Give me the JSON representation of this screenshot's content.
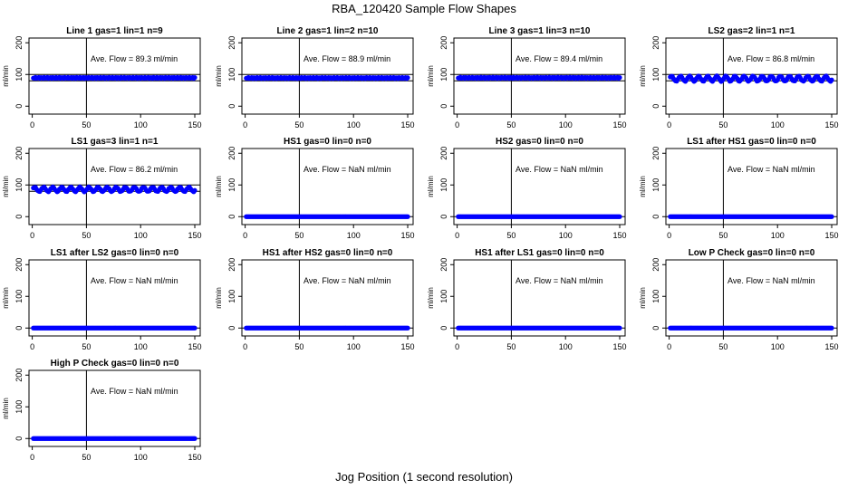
{
  "figure": {
    "title": "RBA_120420  Sample Flow Shapes",
    "xlabel": "Jog Position (1 second resolution)"
  },
  "chart_data": [
    {
      "type": "scatter",
      "title": "Line 1 gas=1 lin=1 n=9",
      "ylabel": "ml/min",
      "annotation": "Ave. Flow =  89.3  ml/min",
      "xlim": [
        -3,
        155
      ],
      "ylim": [
        -25,
        215
      ],
      "xticks": [
        "0",
        "50",
        "100",
        "150"
      ],
      "yticks": [
        "0",
        "100",
        "200"
      ],
      "hlines": [
        80,
        100
      ],
      "vline": 50,
      "series": [
        {
          "name": "flow",
          "x_range": [
            1,
            150
          ],
          "value": 89.3,
          "noise": 2,
          "color": "#0000ff"
        }
      ]
    },
    {
      "type": "scatter",
      "title": "Line 2 gas=1 lin=2 n=10",
      "ylabel": "ml/min",
      "annotation": "Ave. Flow =  88.9  ml/min",
      "xlim": [
        -3,
        155
      ],
      "ylim": [
        -25,
        215
      ],
      "xticks": [
        "0",
        "50",
        "100",
        "150"
      ],
      "yticks": [
        "0",
        "100",
        "200"
      ],
      "hlines": [
        80,
        100
      ],
      "vline": 50,
      "series": [
        {
          "name": "flow",
          "x_range": [
            1,
            150
          ],
          "value": 88.9,
          "noise": 2,
          "color": "#0000ff"
        }
      ]
    },
    {
      "type": "scatter",
      "title": "Line 3 gas=1 lin=3 n=10",
      "ylabel": "ml/min",
      "annotation": "Ave. Flow =  89.4  ml/min",
      "xlim": [
        -3,
        155
      ],
      "ylim": [
        -25,
        215
      ],
      "xticks": [
        "0",
        "50",
        "100",
        "150"
      ],
      "yticks": [
        "0",
        "100",
        "200"
      ],
      "hlines": [
        80,
        100
      ],
      "vline": 50,
      "series": [
        {
          "name": "flow",
          "x_range": [
            1,
            150
          ],
          "value": 89.4,
          "noise": 2,
          "color": "#0000ff"
        }
      ]
    },
    {
      "type": "scatter",
      "title": "LS2 gas=2 lin=1 n=1",
      "ylabel": "ml/min",
      "annotation": "Ave. Flow =  86.8  ml/min",
      "xlim": [
        -3,
        155
      ],
      "ylim": [
        -25,
        215
      ],
      "xticks": [
        "0",
        "50",
        "100",
        "150"
      ],
      "yticks": [
        "0",
        "100",
        "200"
      ],
      "hlines": [
        80,
        100
      ],
      "vline": 50,
      "series": [
        {
          "name": "flow",
          "x_range": [
            1,
            150
          ],
          "value": 86.8,
          "wave": 8,
          "noise": 1,
          "color": "#0000ff"
        }
      ]
    },
    {
      "type": "scatter",
      "title": "LS1 gas=3 lin=1 n=1",
      "ylabel": "ml/min",
      "annotation": "Ave. Flow =  86.2  ml/min",
      "xlim": [
        -3,
        155
      ],
      "ylim": [
        -25,
        215
      ],
      "xticks": [
        "0",
        "50",
        "100",
        "150"
      ],
      "yticks": [
        "0",
        "100",
        "200"
      ],
      "hlines": [
        80,
        100
      ],
      "vline": 50,
      "series": [
        {
          "name": "flow",
          "x_range": [
            1,
            150
          ],
          "value": 86.2,
          "wave": 7,
          "noise": 1,
          "color": "#0000ff"
        }
      ]
    },
    {
      "type": "scatter",
      "title": "HS1 gas=0 lin=0 n=0",
      "ylabel": "ml/min",
      "annotation": "Ave. Flow =  NaN  ml/min",
      "xlim": [
        -3,
        155
      ],
      "ylim": [
        -25,
        215
      ],
      "xticks": [
        "0",
        "50",
        "100",
        "150"
      ],
      "yticks": [
        "0",
        "100",
        "200"
      ],
      "hlines": [
        0
      ],
      "vline": 50,
      "series": [
        {
          "name": "flow",
          "x_range": [
            1,
            150
          ],
          "value": 0,
          "noise": 0,
          "color": "#0000ff"
        }
      ]
    },
    {
      "type": "scatter",
      "title": "HS2 gas=0 lin=0 n=0",
      "ylabel": "ml/min",
      "annotation": "Ave. Flow =  NaN  ml/min",
      "xlim": [
        -3,
        155
      ],
      "ylim": [
        -25,
        215
      ],
      "xticks": [
        "0",
        "50",
        "100",
        "150"
      ],
      "yticks": [
        "0",
        "100",
        "200"
      ],
      "hlines": [
        0
      ],
      "vline": 50,
      "series": [
        {
          "name": "flow",
          "x_range": [
            1,
            150
          ],
          "value": 0,
          "noise": 0,
          "color": "#0000ff"
        }
      ]
    },
    {
      "type": "scatter",
      "title": "LS1 after HS1 gas=0 lin=0 n=0",
      "ylabel": "ml/min",
      "annotation": "Ave. Flow =  NaN  ml/min",
      "xlim": [
        -3,
        155
      ],
      "ylim": [
        -25,
        215
      ],
      "xticks": [
        "0",
        "50",
        "100",
        "150"
      ],
      "yticks": [
        "0",
        "100",
        "200"
      ],
      "hlines": [
        0
      ],
      "vline": 50,
      "series": [
        {
          "name": "flow",
          "x_range": [
            1,
            150
          ],
          "value": 0,
          "noise": 0,
          "color": "#0000ff"
        }
      ]
    },
    {
      "type": "scatter",
      "title": "LS1 after LS2 gas=0 lin=0 n=0",
      "ylabel": "ml/min",
      "annotation": "Ave. Flow =  NaN  ml/min",
      "xlim": [
        -3,
        155
      ],
      "ylim": [
        -25,
        215
      ],
      "xticks": [
        "0",
        "50",
        "100",
        "150"
      ],
      "yticks": [
        "0",
        "100",
        "200"
      ],
      "hlines": [
        0
      ],
      "vline": 50,
      "series": [
        {
          "name": "flow",
          "x_range": [
            1,
            150
          ],
          "value": 0,
          "noise": 0,
          "color": "#0000ff"
        }
      ]
    },
    {
      "type": "scatter",
      "title": "HS1 after HS2 gas=0 lin=0 n=0",
      "ylabel": "ml/min",
      "annotation": "Ave. Flow =  NaN  ml/min",
      "xlim": [
        -3,
        155
      ],
      "ylim": [
        -25,
        215
      ],
      "xticks": [
        "0",
        "50",
        "100",
        "150"
      ],
      "yticks": [
        "0",
        "100",
        "200"
      ],
      "hlines": [
        0
      ],
      "vline": 50,
      "series": [
        {
          "name": "flow",
          "x_range": [
            1,
            150
          ],
          "value": 0,
          "noise": 0,
          "color": "#0000ff"
        }
      ]
    },
    {
      "type": "scatter",
      "title": "HS1 after LS1 gas=0 lin=0 n=0",
      "ylabel": "ml/min",
      "annotation": "Ave. Flow =  NaN  ml/min",
      "xlim": [
        -3,
        155
      ],
      "ylim": [
        -25,
        215
      ],
      "xticks": [
        "0",
        "50",
        "100",
        "150"
      ],
      "yticks": [
        "0",
        "100",
        "200"
      ],
      "hlines": [
        0
      ],
      "vline": 50,
      "series": [
        {
          "name": "flow",
          "x_range": [
            1,
            150
          ],
          "value": 0,
          "noise": 0,
          "color": "#0000ff"
        }
      ]
    },
    {
      "type": "scatter",
      "title": "Low P Check gas=0 lin=0 n=0",
      "ylabel": "ml/min",
      "annotation": "Ave. Flow =  NaN  ml/min",
      "xlim": [
        -3,
        155
      ],
      "ylim": [
        -25,
        215
      ],
      "xticks": [
        "0",
        "50",
        "100",
        "150"
      ],
      "yticks": [
        "0",
        "100",
        "200"
      ],
      "hlines": [
        0
      ],
      "vline": 50,
      "series": [
        {
          "name": "flow",
          "x_range": [
            1,
            150
          ],
          "value": 0,
          "noise": 0,
          "color": "#0000ff"
        }
      ]
    },
    {
      "type": "scatter",
      "title": "High P Check gas=0 lin=0 n=0",
      "ylabel": "ml/min",
      "annotation": "Ave. Flow =  NaN  ml/min",
      "xlim": [
        -3,
        155
      ],
      "ylim": [
        -25,
        215
      ],
      "xticks": [
        "0",
        "50",
        "100",
        "150"
      ],
      "yticks": [
        "0",
        "100",
        "200"
      ],
      "hlines": [
        0
      ],
      "vline": 50,
      "series": [
        {
          "name": "flow",
          "x_range": [
            1,
            150
          ],
          "value": 0,
          "noise": 0,
          "color": "#0000ff"
        }
      ]
    }
  ]
}
